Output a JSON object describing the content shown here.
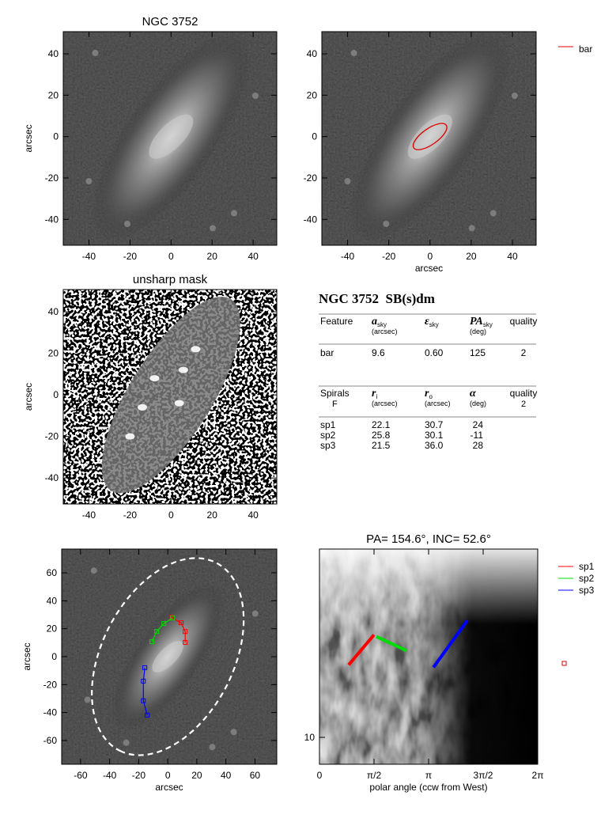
{
  "chart_data": [
    {
      "type": "image",
      "title": "NGC 3752",
      "ylabel": "arcsec",
      "xlim": [
        -52.5,
        51.5
      ],
      "ylim": [
        -52.5,
        50.7
      ],
      "xticks": [
        -40,
        -20,
        0,
        20,
        40
      ],
      "yticks": [
        -40,
        -20,
        0,
        20,
        40
      ]
    },
    {
      "type": "image",
      "xlabel": "arcsec",
      "xlim": [
        -52.5,
        51.5
      ],
      "ylim": [
        -52.5,
        50.7
      ],
      "xticks": [
        -40,
        -20,
        0,
        20,
        40
      ],
      "yticks": [
        -40,
        -20,
        0,
        20,
        40
      ],
      "overlay": {
        "name": "bar",
        "color": "#e00000"
      }
    },
    {
      "type": "image",
      "title": "unsharp mask",
      "ylabel": "arcsec",
      "xlim": [
        -52.5,
        51.5
      ],
      "ylim": [
        -52.5,
        50.7
      ],
      "xticks": [
        -40,
        -20,
        0,
        20,
        40
      ],
      "yticks": [
        -40,
        -20,
        0,
        20,
        40
      ]
    },
    {
      "type": "image",
      "xlabel": "arcsec",
      "ylabel": "arcsec",
      "xlim": [
        -73,
        75
      ],
      "ylim": [
        -77,
        77
      ],
      "xticks": [
        -60,
        -40,
        -20,
        0,
        20,
        40,
        60
      ],
      "yticks": [
        -60,
        -40,
        -20,
        0,
        20,
        40,
        60
      ],
      "ellipse": {
        "semi_major": 75,
        "pa": 154.6,
        "inc": 52.6
      },
      "series": [
        {
          "color": "#ff0000",
          "x": [
            2.2,
            9.2,
            12,
            12
          ],
          "values": [
            28.2,
            24.3,
            18,
            10.2
          ]
        },
        {
          "color": "#00dd00",
          "x": [
            -10.9,
            -7.6,
            -2.7,
            3.3
          ],
          "values": [
            10.7,
            18,
            23.7,
            27.7
          ]
        },
        {
          "color": "#0000ff",
          "x": [
            -14.1,
            -16.8,
            -16.8,
            -15.8
          ],
          "values": [
            -41.8,
            -31.6,
            -17.5,
            -7.9
          ]
        }
      ]
    },
    {
      "type": "line",
      "title": "PA= 154.6°, INC=  52.6°",
      "xlabel": "polar angle (ccw from West)",
      "xlim": [
        0,
        6.2832
      ],
      "ylim": [
        7.45,
        78.5
      ],
      "log_y": true,
      "xticks": [
        0,
        {
          "value": 1.5708,
          "label": "π/2"
        },
        {
          "value": 3.1416,
          "label": "π"
        },
        {
          "value": 4.7124,
          "label": "3π/2"
        },
        {
          "value": 6.2832,
          "label": "2π"
        }
      ],
      "yticks": [
        10
      ],
      "series": [
        {
          "name": "sp1",
          "color": "#ff0000",
          "x": [
            0.84,
            1.57
          ],
          "values": [
            22.1,
            30.7
          ]
        },
        {
          "name": "sp2",
          "color": "#00dd00",
          "x": [
            1.64,
            2.51
          ],
          "values": [
            30.1,
            25.8
          ]
        },
        {
          "name": "sp3",
          "color": "#0000ff",
          "x": [
            3.28,
            4.26
          ],
          "values": [
            21.5,
            36.0
          ]
        }
      ]
    }
  ],
  "table": {
    "title": "NGC 3752  SB(s)dm",
    "bar_header": [
      {
        "text": "Feature"
      },
      {
        "symbol": "a",
        "sub": "sky",
        "unit": "(arcsec)"
      },
      {
        "symbol": "ε",
        "sub": "sky"
      },
      {
        "symbol": "PA",
        "sub": "sky",
        "unit": "(deg)"
      },
      {
        "text": "quality"
      }
    ],
    "bar_rows": [
      [
        "bar",
        "9.6",
        "0.60",
        "125",
        "2"
      ]
    ],
    "spiral_header": [
      {
        "text": "Spirals",
        "below": "F"
      },
      {
        "symbol": "r",
        "sub": "i",
        "unit": "(arcsec)"
      },
      {
        "symbol": "r",
        "sub": "o",
        "unit": "(arcsec)"
      },
      {
        "symbol": "α",
        "unit": "(deg)"
      },
      {
        "text": "quality",
        "below": "2"
      }
    ],
    "spiral_rows": [
      [
        "sp1",
        "22.1",
        "30.7",
        "24"
      ],
      [
        "sp2",
        "25.8",
        "30.1",
        "-11"
      ],
      [
        "sp3",
        "21.5",
        "36.0",
        "28"
      ]
    ]
  }
}
